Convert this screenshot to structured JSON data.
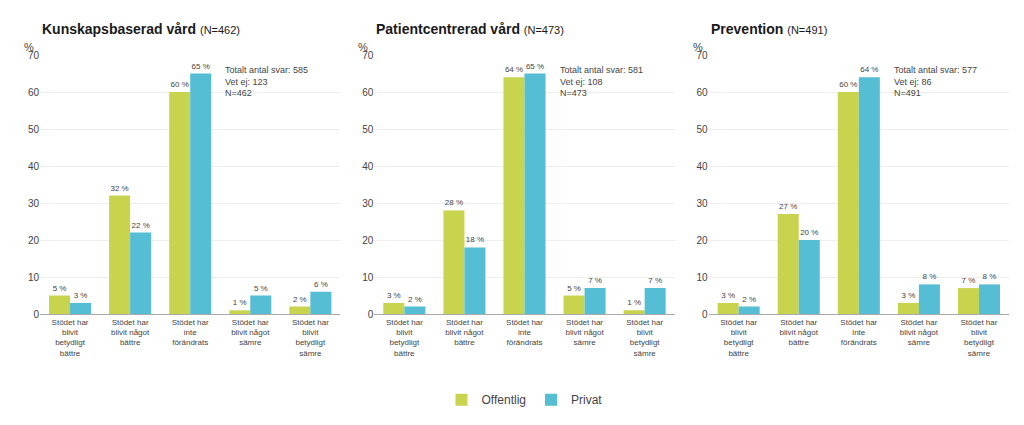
{
  "chart_data": [
    {
      "type": "bar",
      "title": "Kunskapsbaserad vård",
      "subtitle": "(N=462)",
      "y_label": "%",
      "annotations": [
        "Totalt antal svar: 585\nVet ej: 123\nN=462"
      ],
      "categories": [
        "Stödet har\nblivit\nbetydligt\nbättre",
        "Stödet har\nblivit något\nbättre",
        "Stödet har\ninte\nförändrats",
        "Stödet har\nblivit något\nsämre",
        "Stödet har\nblivit\nbetydligt\nsämre"
      ],
      "series": [
        {
          "name": "Offentlig",
          "color": "#c8d44e",
          "values": [
            5,
            32,
            60,
            1,
            2
          ],
          "value_labels": [
            "5 %",
            "32 %",
            "60 %",
            "1 %",
            "2 %"
          ]
        },
        {
          "name": "Privat",
          "color": "#55bdd4",
          "values": [
            3,
            22,
            65,
            5,
            6
          ],
          "value_labels": [
            "3 %",
            "22 %",
            "65 %",
            "5 %",
            "6 %"
          ]
        }
      ],
      "ylim": [
        0,
        70
      ],
      "yticks": [
        0,
        10,
        20,
        30,
        40,
        50,
        60,
        70
      ],
      "grid": true,
      "data_labels": true,
      "legend": "bottom"
    },
    {
      "type": "bar",
      "title": "Patientcentrerad vård",
      "subtitle": "(N=473)",
      "y_label": "%",
      "annotations": [
        "Totalt antal svar: 581\nVet ej: 108\nN=473"
      ],
      "categories": [
        "Stödet har\nblivit\nbetydligt\nbättre",
        "Stödet har\nblivit något\nbättre",
        "Stödet har\ninte\nförändrats",
        "Stödet har\nblivit något\nsämre",
        "Stödet har\nblivit\nbetydligt\nsämre"
      ],
      "series": [
        {
          "name": "Offentlig",
          "color": "#c8d44e",
          "values": [
            3,
            28,
            64,
            5,
            1
          ],
          "value_labels": [
            "3 %",
            "28 %",
            "64 %",
            "5 %",
            "1 %"
          ]
        },
        {
          "name": "Privat",
          "color": "#55bdd4",
          "values": [
            2,
            18,
            65,
            7,
            7
          ],
          "value_labels": [
            "2 %",
            "18 %",
            "65 %",
            "7 %",
            "7 %"
          ]
        }
      ],
      "ylim": [
        0,
        70
      ],
      "yticks": [
        0,
        10,
        20,
        30,
        40,
        50,
        60,
        70
      ],
      "grid": true,
      "data_labels": true,
      "legend": "bottom"
    },
    {
      "type": "bar",
      "title": "Prevention",
      "subtitle": "(N=491)",
      "y_label": "%",
      "annotations": [
        "Totalt antal svar: 577\nVet ej: 86\nN=491"
      ],
      "categories": [
        "Stödet har\nblivit\nbetydligt\nbättre",
        "Stödet har\nblivit något\nbättre",
        "Stödet har\ninte\nförändrats",
        "Stödet har\nblivit något\nsämre",
        "Stödet har\nblivit\nbetydligt\nsämre"
      ],
      "series": [
        {
          "name": "Offentlig",
          "color": "#c8d44e",
          "values": [
            3,
            27,
            60,
            3,
            7
          ],
          "value_labels": [
            "3 %",
            "27 %",
            "60 %",
            "3 %",
            "7 %"
          ]
        },
        {
          "name": "Privat",
          "color": "#55bdd4",
          "values": [
            2,
            20,
            64,
            8,
            8
          ],
          "value_labels": [
            "2 %",
            "20 %",
            "64 %",
            "8 %",
            "8 %"
          ]
        }
      ],
      "ylim": [
        0,
        70
      ],
      "yticks": [
        0,
        10,
        20,
        30,
        40,
        50,
        60,
        70
      ],
      "grid": true,
      "data_labels": true,
      "legend": "bottom"
    }
  ]
}
